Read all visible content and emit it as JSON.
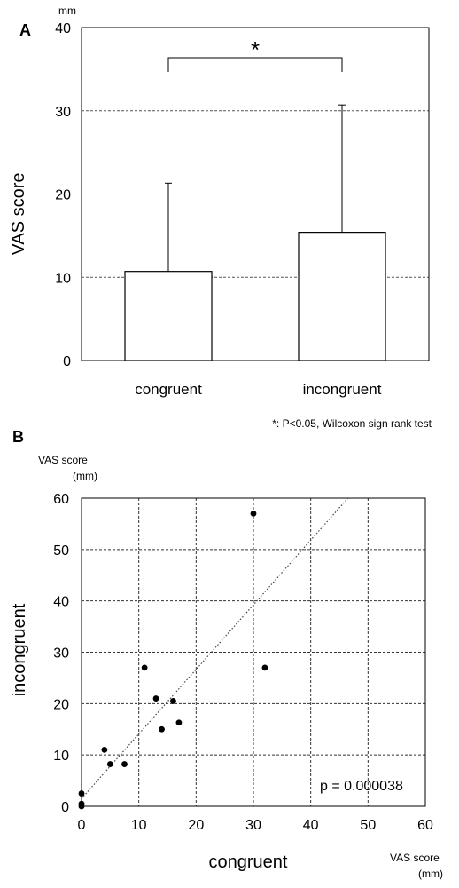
{
  "chart_data": [
    {
      "panel_label": "A",
      "type": "bar",
      "unit": "mm",
      "ylabel": "VAS score",
      "ylim": [
        0,
        40
      ],
      "yticks": [
        0,
        10,
        20,
        30,
        40
      ],
      "grid": true,
      "categories": [
        "congruent",
        "incongruent"
      ],
      "values": [
        10.7,
        15.4
      ],
      "error_upper": [
        21.3,
        30.7
      ],
      "significance_marker": "*",
      "footnote": "*: P<0.05, Wilcoxon sign rank test"
    },
    {
      "panel_label": "B",
      "type": "scatter",
      "xlabel": "congruent",
      "ylabel": "incongruent",
      "x_unit_label_line1": "VAS score",
      "x_unit_label_line2": "(mm)",
      "y_unit_label_line1": "VAS score",
      "y_unit_label_line2": "(mm)",
      "xlim": [
        0,
        60
      ],
      "ylim": [
        0,
        60
      ],
      "xticks": [
        0,
        10,
        20,
        30,
        40,
        50,
        60
      ],
      "yticks": [
        0,
        10,
        20,
        30,
        40,
        50,
        60
      ],
      "grid": true,
      "points": [
        {
          "x": 0,
          "y": 0
        },
        {
          "x": 0,
          "y": 0.5
        },
        {
          "x": 0,
          "y": 2.5
        },
        {
          "x": 4,
          "y": 11
        },
        {
          "x": 5,
          "y": 8.2
        },
        {
          "x": 7.5,
          "y": 8.2
        },
        {
          "x": 11,
          "y": 27
        },
        {
          "x": 13,
          "y": 21
        },
        {
          "x": 14,
          "y": 15
        },
        {
          "x": 16,
          "y": 20.5
        },
        {
          "x": 17,
          "y": 16.3
        },
        {
          "x": 30,
          "y": 57
        },
        {
          "x": 32,
          "y": 27
        }
      ],
      "trendline": {
        "x1": 0,
        "y1": 1.5,
        "x2": 46.5,
        "y2": 60
      },
      "annotation": "p = 0.000038"
    }
  ]
}
